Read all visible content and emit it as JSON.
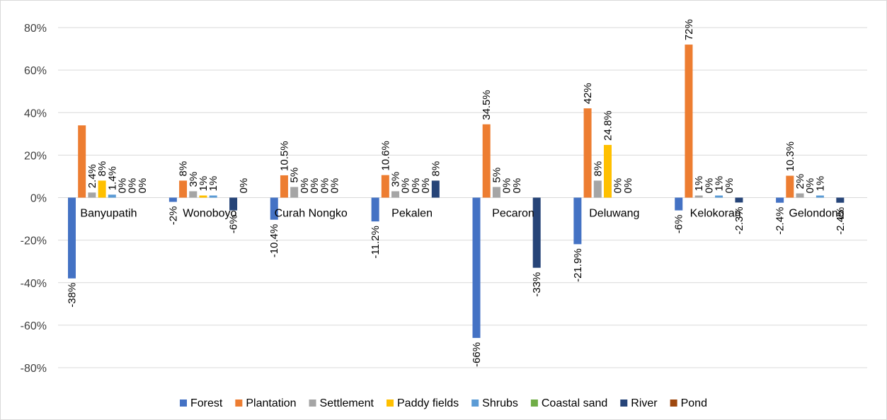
{
  "chart_data": {
    "type": "bar",
    "title": "",
    "xlabel": "",
    "ylabel": "",
    "ylim": [
      -80,
      80
    ],
    "yticks": [
      80,
      60,
      40,
      20,
      0,
      -20,
      -40,
      -60,
      -80
    ],
    "ytick_labels": [
      "80%",
      "60%",
      "40%",
      "20%",
      "0%",
      "-20%",
      "-40%",
      "-60%",
      "-80%"
    ],
    "grid": true,
    "legend_position": "bottom",
    "categories": [
      "Banyupatih",
      "Wonoboyo",
      "Curah Nongko",
      "Pekalen",
      "Pecaron",
      "Deluwang",
      "Kelokoran",
      "Gelondong"
    ],
    "series": [
      {
        "name": "Forest",
        "color": "#4472C4",
        "values": [
          -38,
          -2,
          -10.4,
          -11.2,
          -66,
          -21.9,
          -6,
          -2.4
        ],
        "labels": [
          "-38%",
          "-2%",
          "-10.4%",
          "-11.2%",
          "-66%",
          "-21.9%",
          "-6%",
          "-2.4%"
        ]
      },
      {
        "name": "Plantation",
        "color": "#ED7D31",
        "values": [
          34,
          8,
          10.5,
          10.6,
          34.5,
          42,
          72,
          10.3
        ],
        "labels": [
          "34%",
          "8%",
          "10.5%",
          "10.6%",
          "34.5%",
          "42%",
          "72%",
          "10.3%"
        ]
      },
      {
        "name": "Settlement",
        "color": "#A5A5A5",
        "values": [
          2.4,
          3,
          5,
          3,
          5,
          8,
          1,
          2
        ],
        "labels": [
          "2.4%",
          "3%",
          "5%",
          "3%",
          "5%",
          "8%",
          "1%",
          "2%"
        ]
      },
      {
        "name": "Paddy fields",
        "color": "#FFC000",
        "values": [
          8,
          1,
          0,
          0,
          0,
          24.8,
          0,
          0
        ],
        "labels": [
          "8%",
          "1%",
          "0%",
          "0%",
          "0%",
          "24.8%",
          "0%",
          "0%"
        ]
      },
      {
        "name": "Shrubs",
        "color": "#5B9BD5",
        "values": [
          1.4,
          1,
          0,
          0,
          0,
          0,
          1,
          1
        ],
        "labels": [
          "1.4%",
          "1%",
          "0%",
          "0%",
          "0%",
          "0%",
          "1%",
          "1%"
        ]
      },
      {
        "name": "Coastal sand",
        "color": "#70AD47",
        "values": [
          0,
          0,
          0,
          0,
          0,
          0,
          0,
          0
        ],
        "labels": [
          "0%",
          "0%",
          "0%",
          "0%",
          "0%",
          "0%",
          "0%",
          "0%"
        ]
      },
      {
        "name": "River",
        "color": "#264478",
        "values": [
          0,
          -6,
          0,
          8,
          -33,
          0,
          -2.3,
          -2.4
        ],
        "labels": [
          "0%",
          "-6%",
          "0%",
          "8%",
          "-33%",
          "0%",
          "-2.3%",
          "-2.4%"
        ]
      },
      {
        "name": "Pond",
        "color": "#9E480E",
        "values": [
          0,
          0,
          0,
          0,
          0,
          0,
          0,
          0
        ],
        "labels": [
          "0%",
          "0%",
          "0%",
          "0%",
          "0%",
          "0%",
          "0%",
          "0%"
        ]
      }
    ],
    "label_visibility": [
      [
        true,
        false,
        true,
        true,
        true,
        true,
        true,
        true
      ],
      [
        true,
        true,
        true,
        true,
        true,
        false,
        true,
        true
      ],
      [
        true,
        true,
        true,
        true,
        true,
        true,
        true,
        false
      ],
      [
        true,
        true,
        true,
        true,
        true,
        true,
        true,
        false
      ],
      [
        true,
        true,
        true,
        true,
        true,
        false,
        true,
        false
      ],
      [
        true,
        true,
        true,
        true,
        true,
        true,
        false,
        false
      ],
      [
        true,
        true,
        true,
        true,
        true,
        true,
        true,
        false
      ],
      [
        true,
        true,
        true,
        true,
        true,
        false,
        true,
        false
      ]
    ]
  }
}
